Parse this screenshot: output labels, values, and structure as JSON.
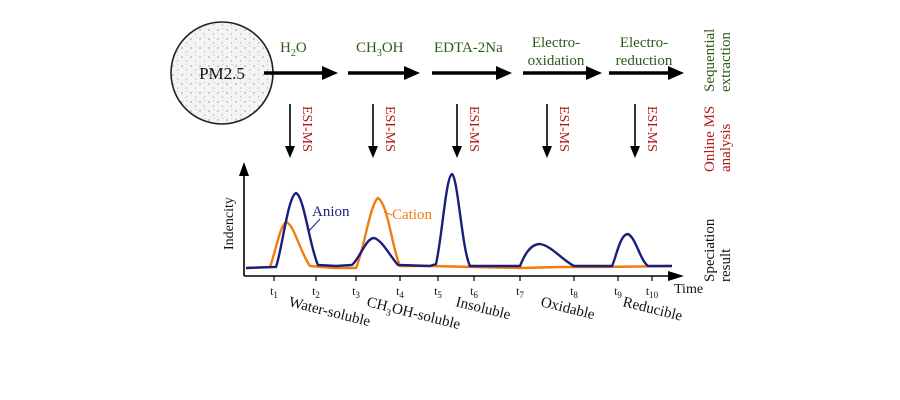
{
  "sample": {
    "label": "PM2.5"
  },
  "steps": [
    {
      "label": "H",
      "sub": "2",
      "tail": "O"
    },
    {
      "label": "CH",
      "sub": "3",
      "tail": "OH"
    },
    {
      "label": "EDTA-2Na",
      "sub": "",
      "tail": ""
    },
    {
      "label": "Electro-",
      "line2": "oxidation"
    },
    {
      "label": "Electro-",
      "line2": "reduction"
    }
  ],
  "esi_label": "ESI-MS",
  "side_labels": {
    "sequential": [
      "Sequential",
      "extraction"
    ],
    "online": [
      "Online MS",
      "analysis"
    ],
    "speciation": [
      "Speciation",
      "result"
    ]
  },
  "axes": {
    "ylabel": "Indencity",
    "xlabel": "Time"
  },
  "legend": {
    "anion": "Anion",
    "cation": "Cation"
  },
  "colors": {
    "anion": "#1a1f7a",
    "cation": "#f07c12",
    "green": "#2b5a1a",
    "red": "#b01818"
  },
  "ticks": [
    {
      "base": "t",
      "sub": "1"
    },
    {
      "base": "t",
      "sub": "2"
    },
    {
      "base": "t",
      "sub": "3"
    },
    {
      "base": "t",
      "sub": "4"
    },
    {
      "base": "t",
      "sub": "5"
    },
    {
      "base": "t",
      "sub": "6"
    },
    {
      "base": "t",
      "sub": "7"
    },
    {
      "base": "t",
      "sub": "8"
    },
    {
      "base": "t",
      "sub": "9"
    },
    {
      "base": "t",
      "sub": "10"
    }
  ],
  "phases": [
    {
      "label": "Water-soluble"
    },
    {
      "label": "CH",
      "sub": "3",
      "tail": "OH-soluble"
    },
    {
      "label": "Insoluble"
    },
    {
      "label": "Oxidable"
    },
    {
      "label": "Reducible"
    }
  ]
}
